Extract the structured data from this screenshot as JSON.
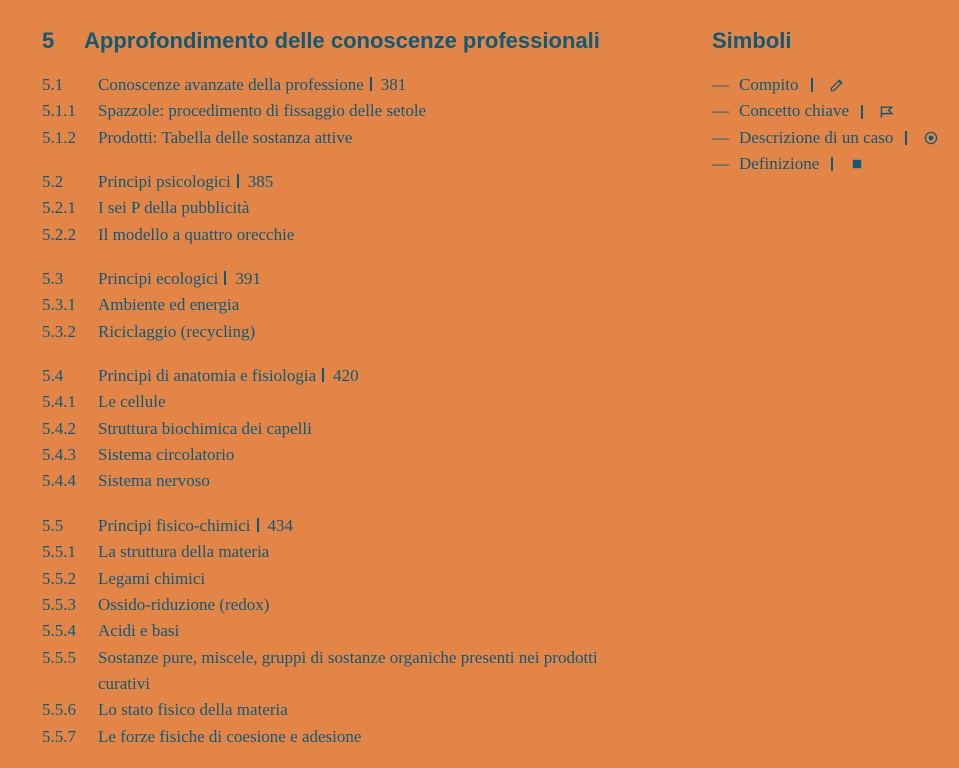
{
  "chapter": {
    "num": "5",
    "title": "Approfondimento delle conoscenze professionali"
  },
  "sections": [
    {
      "head": {
        "num": "5.1",
        "title": "Conoscenze avanzate della professione",
        "page": "381"
      },
      "items": [
        {
          "num": "5.1.1",
          "title": "Spazzole: procedimento di fissaggio delle setole"
        },
        {
          "num": "5.1.2",
          "title": "Prodotti: Tabella delle sostanza attive"
        }
      ]
    },
    {
      "head": {
        "num": "5.2",
        "title": "Principi psicologici",
        "page": "385"
      },
      "items": [
        {
          "num": "5.2.1",
          "title": "I sei P della pubblicità"
        },
        {
          "num": "5.2.2",
          "title": "Il modello a quattro orecchie"
        }
      ]
    },
    {
      "head": {
        "num": "5.3",
        "title": "Principi ecologici",
        "page": "391"
      },
      "items": [
        {
          "num": "5.3.1",
          "title": "Ambiente ed energia"
        },
        {
          "num": "5.3.2",
          "title": "Riciclaggio (recycling)"
        }
      ]
    },
    {
      "head": {
        "num": "5.4",
        "title": "Principi di anatomia e fisiologia",
        "page": "420"
      },
      "items": [
        {
          "num": "5.4.1",
          "title": "Le cellule"
        },
        {
          "num": "5.4.2",
          "title": "Struttura biochimica dei capelli"
        },
        {
          "num": "5.4.3",
          "title": "Sistema circolatorio"
        },
        {
          "num": "5.4.4",
          "title": "Sistema nervoso"
        }
      ]
    },
    {
      "head": {
        "num": "5.5",
        "title": "Principi fisico-chimici",
        "page": "434"
      },
      "items": [
        {
          "num": "5.5.1",
          "title": "La struttura della materia"
        },
        {
          "num": "5.5.2",
          "title": "Legami chimici"
        },
        {
          "num": "5.5.3",
          "title": "Ossido-riduzione (redox)"
        },
        {
          "num": "5.5.4",
          "title": "Acidi e basi"
        },
        {
          "num": "5.5.5",
          "title": "Sostanze pure, miscele, gruppi di sostanze organiche presenti nei prodotti curativi"
        },
        {
          "num": "5.5.6",
          "title": "Lo stato fisico della materia"
        },
        {
          "num": "5.5.7",
          "title": "Le forze fisiche di coesione e adesione"
        }
      ]
    }
  ],
  "symbols": {
    "title": "Simboli",
    "items": [
      {
        "label": "Compito",
        "icon": "pencil"
      },
      {
        "label": "Concetto chiave",
        "icon": "flag"
      },
      {
        "label": "Descrizione di un caso",
        "icon": "target"
      },
      {
        "label": "Definizione",
        "icon": "square"
      }
    ]
  },
  "style": {
    "bg": "#e28547",
    "fg": "#0d5a7a",
    "body_fontsize": 17,
    "heading_fontsize": 22
  }
}
